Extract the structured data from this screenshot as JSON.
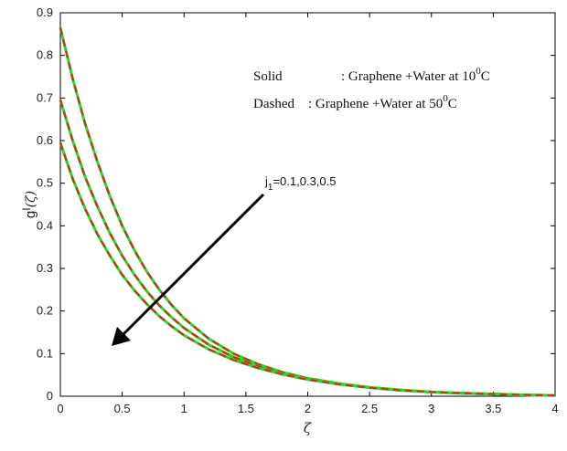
{
  "chart_data": {
    "type": "line",
    "xlim": [
      0,
      4
    ],
    "ylim": [
      0,
      0.9
    ],
    "x_ticks": [
      "0",
      "0.5",
      "1",
      "1.5",
      "2",
      "2.5",
      "3",
      "3.5",
      "4"
    ],
    "y_ticks": [
      "0",
      "0.1",
      "0.2",
      "0.3",
      "0.4",
      "0.5",
      "0.6",
      "0.7",
      "0.8",
      "0.9"
    ],
    "xlabel": "ζ",
    "ylabel_main": "g",
    "ylabel_sup": "I",
    "ylabel_arg": "(ζ)",
    "grid": false,
    "x": [
      0,
      0.1,
      0.2,
      0.3,
      0.4,
      0.5,
      0.6,
      0.7,
      0.8,
      0.9,
      1.0,
      1.2,
      1.4,
      1.6,
      1.8,
      2.0,
      2.25,
      2.5,
      2.75,
      3.0,
      3.25,
      3.5,
      3.75,
      4.0
    ],
    "series": [
      {
        "values": [
          0.865,
          0.745,
          0.64,
          0.55,
          0.47,
          0.4,
          0.342,
          0.292,
          0.25,
          0.214,
          0.183,
          0.135,
          0.1,
          0.075,
          0.056,
          0.042,
          0.03,
          0.021,
          0.015,
          0.01,
          0.007,
          0.005,
          0.003,
          0.002
        ]
      },
      {
        "values": [
          0.695,
          0.6,
          0.515,
          0.445,
          0.383,
          0.33,
          0.285,
          0.246,
          0.213,
          0.185,
          0.16,
          0.121,
          0.092,
          0.07,
          0.053,
          0.04,
          0.029,
          0.02,
          0.014,
          0.01,
          0.007,
          0.005,
          0.003,
          0.002
        ]
      },
      {
        "values": [
          0.595,
          0.51,
          0.44,
          0.38,
          0.33,
          0.285,
          0.248,
          0.216,
          0.188,
          0.164,
          0.143,
          0.11,
          0.085,
          0.066,
          0.051,
          0.039,
          0.028,
          0.02,
          0.014,
          0.01,
          0.007,
          0.005,
          0.003,
          0.002
        ]
      }
    ],
    "legend": [
      {
        "style": "Solid",
        "sep": ": ",
        "text": "Graphene +Water at 10",
        "sup": "0",
        "unit": "C"
      },
      {
        "style": "Dashed",
        "sep": ": ",
        "text": "Graphene +Water at 50",
        "sup": "0",
        "unit": "C"
      }
    ],
    "legend_placement": "top-right",
    "annotation": {
      "base": "j",
      "sub": "1",
      "values": "=0.1,0.3,0.5"
    },
    "colors": {
      "solid": "#22dd22",
      "dashed": "#dd2222",
      "axis": "#000000",
      "arrow": "#000000"
    }
  }
}
